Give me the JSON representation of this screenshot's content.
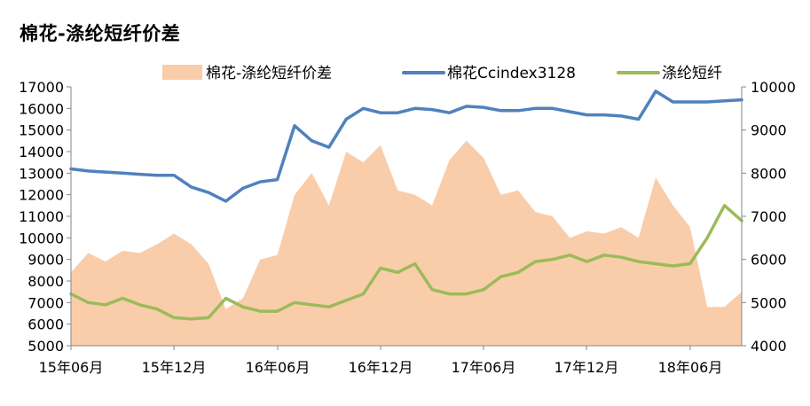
{
  "chart_data": {
    "type": "line",
    "title": "棉花-涤纶短纤价差",
    "left_axis": {
      "ylim": [
        5000,
        17000
      ],
      "ticks": [
        5000,
        6000,
        7000,
        8000,
        9000,
        10000,
        11000,
        12000,
        13000,
        14000,
        15000,
        16000,
        17000
      ]
    },
    "right_axis": {
      "ylim": [
        4000,
        10000
      ],
      "ticks": [
        4000,
        5000,
        6000,
        7000,
        8000,
        9000,
        10000
      ]
    },
    "x_tick_labels": [
      "15年06月",
      "15年12月",
      "16年06月",
      "16年12月",
      "17年06月",
      "17年12月",
      "18年06月"
    ],
    "x_range": [
      "2015-06",
      "2018-09"
    ],
    "legend_position": "top",
    "grid": false,
    "series": [
      {
        "name": "棉花-涤纶短纤价差",
        "kind": "area",
        "axis": "left",
        "color": "#F9CDAA",
        "points": [
          [
            "2015-06",
            8400
          ],
          [
            "2015-07",
            9300
          ],
          [
            "2015-08",
            8900
          ],
          [
            "2015-09",
            9400
          ],
          [
            "2015-10",
            9300
          ],
          [
            "2015-11",
            9700
          ],
          [
            "2015-12",
            10200
          ],
          [
            "2016-01",
            9700
          ],
          [
            "2016-02",
            8800
          ],
          [
            "2016-03",
            6700
          ],
          [
            "2016-04",
            7200
          ],
          [
            "2016-05",
            9000
          ],
          [
            "2016-06",
            9200
          ],
          [
            "2016-07",
            12000
          ],
          [
            "2016-08",
            13000
          ],
          [
            "2016-09",
            11500
          ],
          [
            "2016-10",
            14000
          ],
          [
            "2016-11",
            13500
          ],
          [
            "2016-12",
            14300
          ],
          [
            "2017-01",
            12200
          ],
          [
            "2017-02",
            12000
          ],
          [
            "2017-03",
            11500
          ],
          [
            "2017-04",
            13600
          ],
          [
            "2017-05",
            14500
          ],
          [
            "2017-06",
            13700
          ],
          [
            "2017-07",
            12000
          ],
          [
            "2017-08",
            12200
          ],
          [
            "2017-09",
            11200
          ],
          [
            "2017-10",
            11000
          ],
          [
            "2017-11",
            10000
          ],
          [
            "2017-12",
            10300
          ],
          [
            "2018-01",
            10200
          ],
          [
            "2018-02",
            10500
          ],
          [
            "2018-03",
            10000
          ],
          [
            "2018-04",
            12800
          ],
          [
            "2018-05",
            11500
          ],
          [
            "2018-06",
            10500
          ],
          [
            "2018-07",
            6800
          ],
          [
            "2018-08",
            6800
          ],
          [
            "2018-09",
            7500
          ]
        ]
      },
      {
        "name": "棉花Ccindex3128",
        "kind": "line",
        "axis": "left",
        "color": "#4F81BD",
        "points": [
          [
            "2015-06",
            13200
          ],
          [
            "2015-07",
            13100
          ],
          [
            "2015-08",
            13050
          ],
          [
            "2015-09",
            13000
          ],
          [
            "2015-10",
            12950
          ],
          [
            "2015-11",
            12900
          ],
          [
            "2015-12",
            12900
          ],
          [
            "2016-01",
            12350
          ],
          [
            "2016-02",
            12100
          ],
          [
            "2016-03",
            11700
          ],
          [
            "2016-04",
            12300
          ],
          [
            "2016-05",
            12600
          ],
          [
            "2016-06",
            12700
          ],
          [
            "2016-07",
            15200
          ],
          [
            "2016-08",
            14500
          ],
          [
            "2016-09",
            14200
          ],
          [
            "2016-10",
            15500
          ],
          [
            "2016-11",
            16000
          ],
          [
            "2016-12",
            15800
          ],
          [
            "2017-01",
            15800
          ],
          [
            "2017-02",
            16000
          ],
          [
            "2017-03",
            15950
          ],
          [
            "2017-04",
            15800
          ],
          [
            "2017-05",
            16100
          ],
          [
            "2017-06",
            16050
          ],
          [
            "2017-07",
            15900
          ],
          [
            "2017-08",
            15900
          ],
          [
            "2017-09",
            16000
          ],
          [
            "2017-10",
            16000
          ],
          [
            "2017-11",
            15850
          ],
          [
            "2017-12",
            15700
          ],
          [
            "2018-01",
            15700
          ],
          [
            "2018-02",
            15650
          ],
          [
            "2018-03",
            15500
          ],
          [
            "2018-04",
            16800
          ],
          [
            "2018-05",
            16300
          ],
          [
            "2018-06",
            16300
          ],
          [
            "2018-07",
            16300
          ],
          [
            "2018-08",
            16350
          ],
          [
            "2018-09",
            16400
          ]
        ]
      },
      {
        "name": "涤纶短纤",
        "kind": "line",
        "axis": "right",
        "color": "#9BBB59",
        "points": [
          [
            "2015-06",
            5200
          ],
          [
            "2015-07",
            5000
          ],
          [
            "2015-08",
            4950
          ],
          [
            "2015-09",
            5100
          ],
          [
            "2015-10",
            4950
          ],
          [
            "2015-11",
            4850
          ],
          [
            "2015-12",
            4650
          ],
          [
            "2016-01",
            4620
          ],
          [
            "2016-02",
            4650
          ],
          [
            "2016-03",
            5100
          ],
          [
            "2016-04",
            4900
          ],
          [
            "2016-05",
            4800
          ],
          [
            "2016-06",
            4800
          ],
          [
            "2016-07",
            5000
          ],
          [
            "2016-08",
            4950
          ],
          [
            "2016-09",
            4900
          ],
          [
            "2016-10",
            5050
          ],
          [
            "2016-11",
            5200
          ],
          [
            "2016-12",
            5800
          ],
          [
            "2017-01",
            5700
          ],
          [
            "2017-02",
            5900
          ],
          [
            "2017-03",
            5300
          ],
          [
            "2017-04",
            5200
          ],
          [
            "2017-05",
            5200
          ],
          [
            "2017-06",
            5300
          ],
          [
            "2017-07",
            5600
          ],
          [
            "2017-08",
            5700
          ],
          [
            "2017-09",
            5950
          ],
          [
            "2017-10",
            6000
          ],
          [
            "2017-11",
            6100
          ],
          [
            "2017-12",
            5950
          ],
          [
            "2018-01",
            6100
          ],
          [
            "2018-02",
            6050
          ],
          [
            "2018-03",
            5950
          ],
          [
            "2018-04",
            5900
          ],
          [
            "2018-05",
            5850
          ],
          [
            "2018-06",
            5900
          ],
          [
            "2018-07",
            6500
          ],
          [
            "2018-08",
            7250
          ],
          [
            "2018-09",
            6900
          ]
        ]
      }
    ]
  }
}
